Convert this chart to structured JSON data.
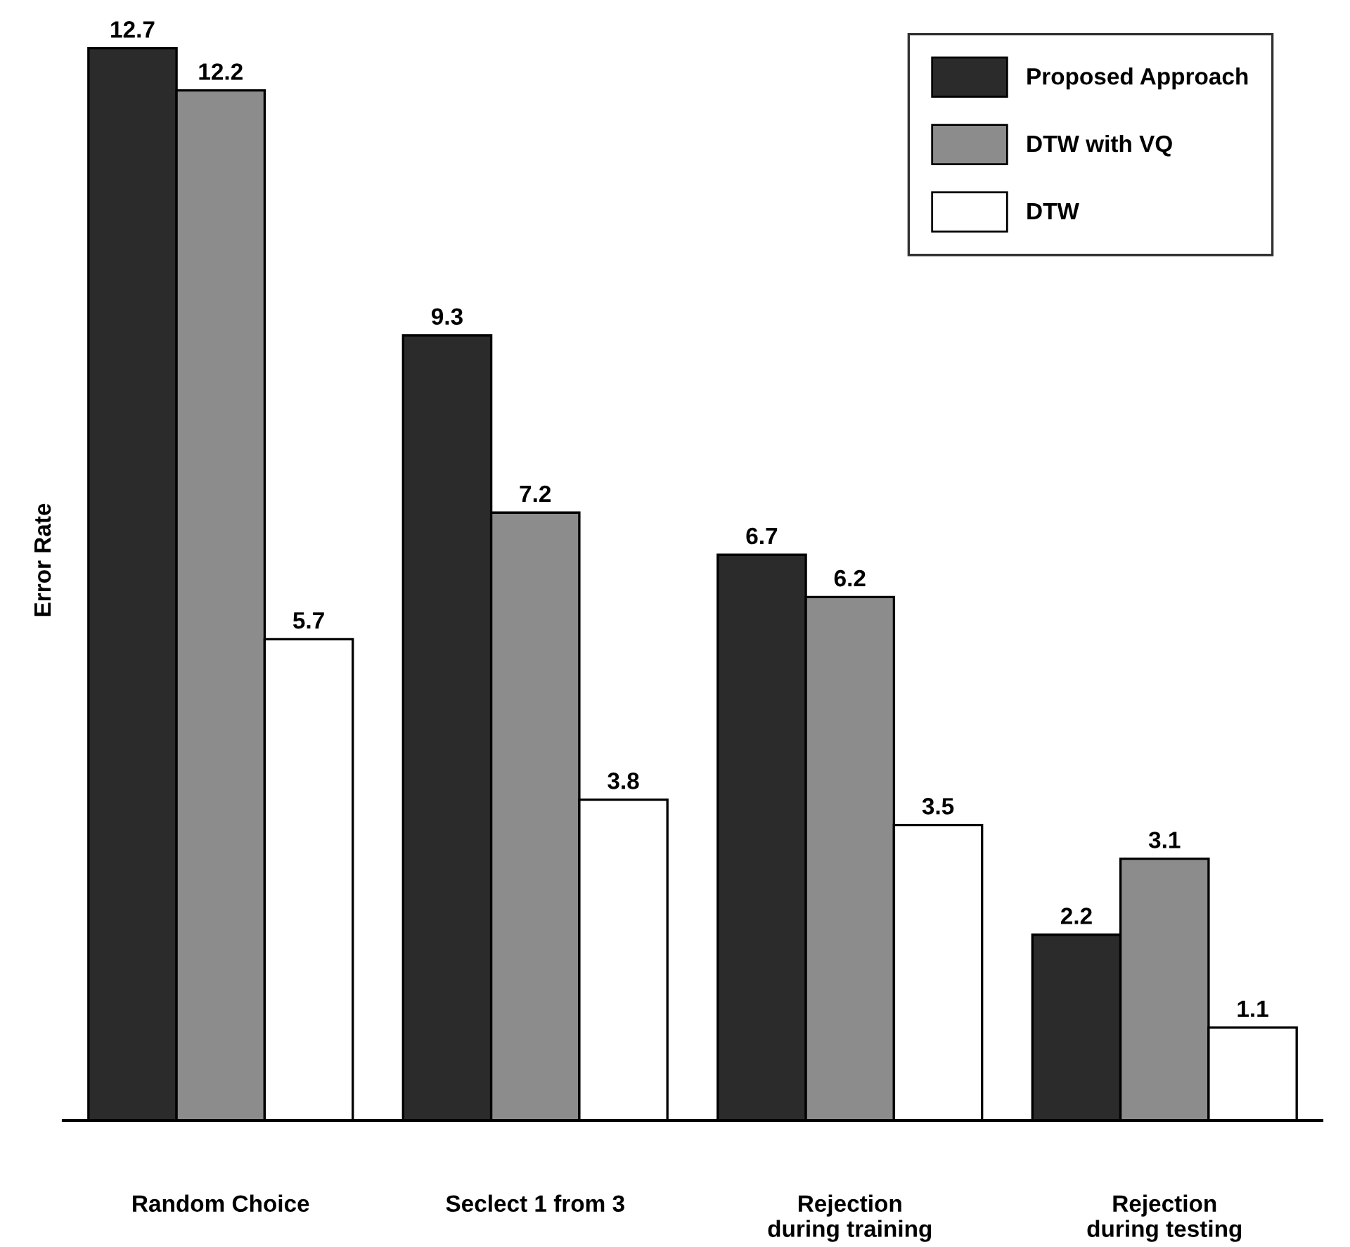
{
  "chart_data": {
    "type": "bar",
    "ylabel": "Error Rate",
    "categories": [
      "Random Choice",
      "Seclect 1 from 3",
      "Rejection\nduring training",
      "Rejection\nduring testing"
    ],
    "series": [
      {
        "name": "Proposed Approach",
        "color": "#2b2b2b",
        "values": [
          12.7,
          9.3,
          6.7,
          2.2
        ]
      },
      {
        "name": "DTW with VQ",
        "color": "#8c8c8c",
        "values": [
          12.2,
          7.2,
          6.2,
          3.1
        ]
      },
      {
        "name": "DTW",
        "color": "#ffffff",
        "values": [
          5.7,
          3.8,
          3.5,
          1.1
        ]
      }
    ],
    "tick_labels": "x",
    "data_labels": true,
    "grid": false,
    "legend": "top right"
  }
}
